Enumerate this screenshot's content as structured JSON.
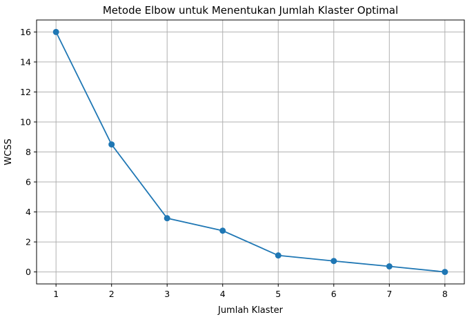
{
  "chart_data": {
    "type": "line",
    "title": "Metode Elbow untuk Menentukan Jumlah Klaster Optimal",
    "xlabel": "Jumlah Klaster",
    "ylabel": "WCSS",
    "x": [
      1,
      2,
      3,
      4,
      5,
      6,
      7,
      8
    ],
    "series": [
      {
        "values": [
          16.0,
          8.5,
          3.58,
          2.75,
          1.1,
          0.73,
          0.37,
          0.0
        ]
      }
    ],
    "xlim": [
      0.65,
      8.35
    ],
    "ylim": [
      -0.8,
      16.8
    ],
    "xticks": [
      1,
      2,
      3,
      4,
      5,
      6,
      7,
      8
    ],
    "yticks": [
      0,
      2,
      4,
      6,
      8,
      10,
      12,
      14,
      16
    ],
    "grid": true,
    "marker": "circle",
    "colors": {
      "series": "#1f77b4",
      "grid": "#b0b0b0"
    }
  }
}
